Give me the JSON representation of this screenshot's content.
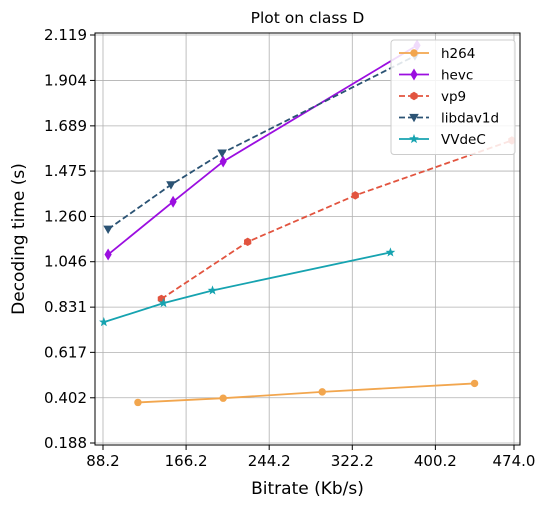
{
  "chart_data": {
    "type": "line",
    "title": "Plot on class D",
    "xlabel": "Bitrate (Kb/s)",
    "ylabel": "Decoding time (s)",
    "xlim": [
      88.2,
      474.0
    ],
    "ylim": [
      0.188,
      2.119
    ],
    "xticks": [
      "88.2",
      "166.2",
      "244.2",
      "322.2",
      "400.2",
      "474.0"
    ],
    "yticks": [
      "0.188",
      "0.402",
      "0.617",
      "0.831",
      "1.046",
      "1.260",
      "1.475",
      "1.689",
      "1.904",
      "2.119"
    ],
    "grid": true,
    "legend_position": "top-right",
    "series": [
      {
        "name": "h264",
        "color": "#f2a64e",
        "dash": "solid",
        "marker": "circle",
        "x": [
          121,
          201,
          294,
          437
        ],
        "y": [
          0.38,
          0.4,
          0.43,
          0.47
        ]
      },
      {
        "name": "hevc",
        "color": "#9b0ee0",
        "dash": "solid",
        "marker": "diamond",
        "x": [
          93,
          154,
          201,
          383
        ],
        "y": [
          1.08,
          1.33,
          1.52,
          2.07
        ]
      },
      {
        "name": "vp9",
        "color": "#e2543f",
        "dash": "dashed",
        "marker": "hexagon",
        "x": [
          143,
          224,
          325,
          472
        ],
        "y": [
          0.87,
          1.14,
          1.36,
          1.62
        ]
      },
      {
        "name": "libdav1d",
        "color": "#2b5374",
        "dash": "dashed",
        "marker": "triangle-down",
        "x": [
          93,
          152,
          200,
          381
        ],
        "y": [
          1.2,
          1.41,
          1.56,
          2.02
        ]
      },
      {
        "name": "VVdeC",
        "color": "#16a3b0",
        "dash": "solid",
        "marker": "star",
        "x": [
          89,
          145,
          191,
          358
        ],
        "y": [
          0.76,
          0.85,
          0.91,
          1.09
        ]
      }
    ]
  }
}
